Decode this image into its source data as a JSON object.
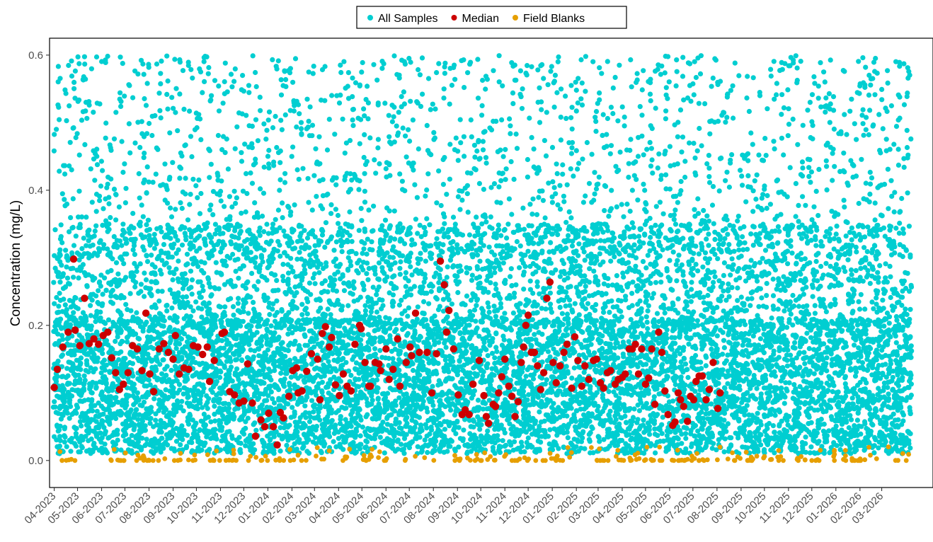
{
  "chart_data": {
    "type": "scatter",
    "ylabel": "Concentration (mg/L)",
    "xlabel": "",
    "title": "",
    "ylim": [
      -0.04,
      0.625
    ],
    "yticks": [
      0.0,
      0.2,
      0.4,
      0.6
    ],
    "ytick_labels": [
      "0.0",
      "0.2",
      "0.4",
      "0.6"
    ],
    "xlim": [
      "2023-03-26",
      "2026-05-06"
    ],
    "xtick_dates": [
      "2023-04-01",
      "2023-05-01",
      "2023-06-01",
      "2023-07-01",
      "2023-08-01",
      "2023-09-01",
      "2023-10-01",
      "2023-11-01",
      "2023-12-01",
      "2024-01-01",
      "2024-02-01",
      "2024-03-01",
      "2024-04-01",
      "2024-05-01",
      "2024-06-01",
      "2024-07-01",
      "2024-08-01",
      "2024-09-01",
      "2024-10-01",
      "2024-11-01",
      "2024-12-01",
      "2025-01-01",
      "2025-02-01",
      "2025-03-01",
      "2025-04-01",
      "2025-05-01",
      "2025-06-01",
      "2025-07-01",
      "2025-08-01",
      "2025-09-01",
      "2025-10-01",
      "2025-11-01",
      "2025-12-01",
      "2026-01-01",
      "2026-02-01",
      "2026-03-01"
    ],
    "xtick_labels": [
      "04-2023",
      "05-2023",
      "06-2023",
      "07-2023",
      "08-2023",
      "09-2023",
      "10-2023",
      "11-2023",
      "12-2023",
      "01-2024",
      "02-2024",
      "03-2024",
      "04-2024",
      "05-2024",
      "06-2024",
      "07-2024",
      "08-2024",
      "09-2024",
      "10-2024",
      "11-2024",
      "12-2024",
      "01-2025",
      "02-2025",
      "03-2025",
      "04-2025",
      "05-2025",
      "06-2025",
      "07-2025",
      "08-2025",
      "09-2025",
      "10-2025",
      "11-2025",
      "12-2025",
      "01-2026",
      "02-2026",
      "03-2026"
    ],
    "grid": false,
    "legend": {
      "position": "top",
      "entries": [
        {
          "label": "All Samples",
          "color": "#00CED1"
        },
        {
          "label": "Median",
          "color": "#CC0000"
        },
        {
          "label": "Field Blanks",
          "color": "#E69F00"
        }
      ]
    },
    "series": [
      {
        "name": "All Samples",
        "color": "#00CED1",
        "date_range": [
          "2023-04-01",
          "2026-04-08"
        ],
        "y_range": [
          0.0,
          0.6
        ],
        "approx_count": 9000
      },
      {
        "name": "Median",
        "color": "#CC0000",
        "points": [
          [
            "2023-04-01",
            0.108
          ],
          [
            "2023-04-05",
            0.135
          ],
          [
            "2023-04-12",
            0.168
          ],
          [
            "2023-04-19",
            0.19
          ],
          [
            "2023-04-26",
            0.298
          ],
          [
            "2023-04-28",
            0.193
          ],
          [
            "2023-05-04",
            0.17
          ],
          [
            "2023-05-10",
            0.24
          ],
          [
            "2023-05-16",
            0.173
          ],
          [
            "2023-05-22",
            0.18
          ],
          [
            "2023-05-28",
            0.172
          ],
          [
            "2023-06-03",
            0.185
          ],
          [
            "2023-06-09",
            0.19
          ],
          [
            "2023-06-14",
            0.152
          ],
          [
            "2023-06-19",
            0.13
          ],
          [
            "2023-06-24",
            0.105
          ],
          [
            "2023-06-29",
            0.113
          ],
          [
            "2023-07-05",
            0.13
          ],
          [
            "2023-07-11",
            0.17
          ],
          [
            "2023-07-17",
            0.165
          ],
          [
            "2023-07-23",
            0.133
          ],
          [
            "2023-07-28",
            0.218
          ],
          [
            "2023-08-02",
            0.128
          ],
          [
            "2023-08-07",
            0.102
          ],
          [
            "2023-08-14",
            0.165
          ],
          [
            "2023-08-20",
            0.173
          ],
          [
            "2023-08-26",
            0.16
          ],
          [
            "2023-09-01",
            0.15
          ],
          [
            "2023-09-04",
            0.185
          ],
          [
            "2023-09-09",
            0.128
          ],
          [
            "2023-09-15",
            0.137
          ],
          [
            "2023-09-21",
            0.135
          ],
          [
            "2023-09-27",
            0.17
          ],
          [
            "2023-10-03",
            0.168
          ],
          [
            "2023-10-09",
            0.157
          ],
          [
            "2023-10-15",
            0.168
          ],
          [
            "2023-10-18",
            0.117
          ],
          [
            "2023-10-24",
            0.148
          ],
          [
            "2023-11-03",
            0.188
          ],
          [
            "2023-11-06",
            0.19
          ],
          [
            "2023-11-13",
            0.102
          ],
          [
            "2023-11-19",
            0.097
          ],
          [
            "2023-11-25",
            0.085
          ],
          [
            "2023-12-01",
            0.088
          ],
          [
            "2023-12-06",
            0.143
          ],
          [
            "2023-12-12",
            0.085
          ],
          [
            "2023-12-16",
            0.036
          ],
          [
            "2023-12-23",
            0.06
          ],
          [
            "2023-12-28",
            0.05
          ],
          [
            "2024-01-02",
            0.07
          ],
          [
            "2024-01-08",
            0.05
          ],
          [
            "2024-01-13",
            0.023
          ],
          [
            "2024-01-17",
            0.071
          ],
          [
            "2024-01-21",
            0.063
          ],
          [
            "2024-01-28",
            0.095
          ],
          [
            "2024-02-02",
            0.133
          ],
          [
            "2024-02-07",
            0.137
          ],
          [
            "2024-02-09",
            0.1
          ],
          [
            "2024-02-14",
            0.103
          ],
          [
            "2024-02-20",
            0.132
          ],
          [
            "2024-02-26",
            0.158
          ],
          [
            "2024-03-05",
            0.15
          ],
          [
            "2024-03-08",
            0.09
          ],
          [
            "2024-03-11",
            0.188
          ],
          [
            "2024-03-15",
            0.198
          ],
          [
            "2024-03-20",
            0.168
          ],
          [
            "2024-03-23",
            0.182
          ],
          [
            "2024-03-28",
            0.112
          ],
          [
            "2024-04-02",
            0.096
          ],
          [
            "2024-04-07",
            0.128
          ],
          [
            "2024-04-12",
            0.11
          ],
          [
            "2024-04-17",
            0.103
          ],
          [
            "2024-04-22",
            0.172
          ],
          [
            "2024-04-28",
            0.2
          ],
          [
            "2024-04-30",
            0.195
          ],
          [
            "2024-05-05",
            0.145
          ],
          [
            "2024-05-10",
            0.11
          ],
          [
            "2024-05-12",
            0.11
          ],
          [
            "2024-05-18",
            0.145
          ],
          [
            "2024-05-23",
            0.143
          ],
          [
            "2024-05-25",
            0.133
          ],
          [
            "2024-06-01",
            0.165
          ],
          [
            "2024-06-05",
            0.12
          ],
          [
            "2024-06-10",
            0.135
          ],
          [
            "2024-06-16",
            0.18
          ],
          [
            "2024-06-19",
            0.11
          ],
          [
            "2024-06-27",
            0.145
          ],
          [
            "2024-07-02",
            0.168
          ],
          [
            "2024-07-04",
            0.155
          ],
          [
            "2024-07-09",
            0.218
          ],
          [
            "2024-07-14",
            0.16
          ],
          [
            "2024-07-24",
            0.16
          ],
          [
            "2024-07-30",
            0.1
          ],
          [
            "2024-08-05",
            0.158
          ],
          [
            "2024-08-10",
            0.295
          ],
          [
            "2024-08-15",
            0.26
          ],
          [
            "2024-08-18",
            0.19
          ],
          [
            "2024-08-21",
            0.222
          ],
          [
            "2024-08-27",
            0.165
          ],
          [
            "2024-09-02",
            0.097
          ],
          [
            "2024-09-07",
            0.068
          ],
          [
            "2024-09-11",
            0.075
          ],
          [
            "2024-09-16",
            0.068
          ],
          [
            "2024-09-21",
            0.113
          ],
          [
            "2024-09-29",
            0.148
          ],
          [
            "2024-10-05",
            0.096
          ],
          [
            "2024-10-08",
            0.065
          ],
          [
            "2024-10-11",
            0.055
          ],
          [
            "2024-10-17",
            0.083
          ],
          [
            "2024-10-20",
            0.08
          ],
          [
            "2024-10-24",
            0.1
          ],
          [
            "2024-10-28",
            0.124
          ],
          [
            "2024-11-01",
            0.15
          ],
          [
            "2024-11-06",
            0.11
          ],
          [
            "2024-11-10",
            0.095
          ],
          [
            "2024-11-14",
            0.065
          ],
          [
            "2024-11-18",
            0.087
          ],
          [
            "2024-11-22",
            0.145
          ],
          [
            "2024-11-25",
            0.168
          ],
          [
            "2024-11-28",
            0.2
          ],
          [
            "2024-12-01",
            0.215
          ],
          [
            "2024-12-05",
            0.16
          ],
          [
            "2024-12-09",
            0.16
          ],
          [
            "2024-12-13",
            0.14
          ],
          [
            "2024-12-17",
            0.105
          ],
          [
            "2024-12-21",
            0.13
          ],
          [
            "2024-12-25",
            0.24
          ],
          [
            "2024-12-29",
            0.264
          ],
          [
            "2025-01-02",
            0.145
          ],
          [
            "2025-01-06",
            0.115
          ],
          [
            "2025-01-11",
            0.14
          ],
          [
            "2025-01-16",
            0.16
          ],
          [
            "2025-01-20",
            0.172
          ],
          [
            "2025-01-26",
            0.107
          ],
          [
            "2025-01-30",
            0.183
          ],
          [
            "2025-02-03",
            0.148
          ],
          [
            "2025-02-08",
            0.11
          ],
          [
            "2025-02-12",
            0.14
          ],
          [
            "2025-02-17",
            0.12
          ],
          [
            "2025-02-23",
            0.148
          ],
          [
            "2025-02-27",
            0.15
          ],
          [
            "2025-03-04",
            0.115
          ],
          [
            "2025-03-08",
            0.107
          ],
          [
            "2025-03-13",
            0.13
          ],
          [
            "2025-03-17",
            0.133
          ],
          [
            "2025-03-23",
            0.113
          ],
          [
            "2025-03-27",
            0.12
          ],
          [
            "2025-04-01",
            0.123
          ],
          [
            "2025-04-05",
            0.128
          ],
          [
            "2025-04-10",
            0.165
          ],
          [
            "2025-04-14",
            0.165
          ],
          [
            "2025-04-18",
            0.172
          ],
          [
            "2025-04-22",
            0.128
          ],
          [
            "2025-04-26",
            0.165
          ],
          [
            "2025-05-01",
            0.113
          ],
          [
            "2025-05-05",
            0.122
          ],
          [
            "2025-05-09",
            0.165
          ],
          [
            "2025-05-13",
            0.083
          ],
          [
            "2025-05-18",
            0.19
          ],
          [
            "2025-05-22",
            0.16
          ],
          [
            "2025-05-26",
            0.103
          ],
          [
            "2025-05-30",
            0.068
          ],
          [
            "2025-06-05",
            0.052
          ],
          [
            "2025-06-08",
            0.057
          ],
          [
            "2025-06-12",
            0.1
          ],
          [
            "2025-06-15",
            0.09
          ],
          [
            "2025-06-19",
            0.08
          ],
          [
            "2025-06-24",
            0.058
          ],
          [
            "2025-06-28",
            0.095
          ],
          [
            "2025-07-02",
            0.09
          ],
          [
            "2025-07-05",
            0.117
          ],
          [
            "2025-07-09",
            0.125
          ],
          [
            "2025-07-13",
            0.125
          ],
          [
            "2025-07-18",
            0.09
          ],
          [
            "2025-07-22",
            0.105
          ],
          [
            "2025-07-27",
            0.145
          ],
          [
            "2025-08-02",
            0.077
          ],
          [
            "2025-08-05",
            0.1
          ]
        ]
      },
      {
        "name": "Field Blanks",
        "color": "#E69F00",
        "date_range": [
          "2023-04-01",
          "2026-04-08"
        ],
        "y_range": [
          0.0,
          0.02
        ],
        "approx_count": 250
      }
    ]
  }
}
